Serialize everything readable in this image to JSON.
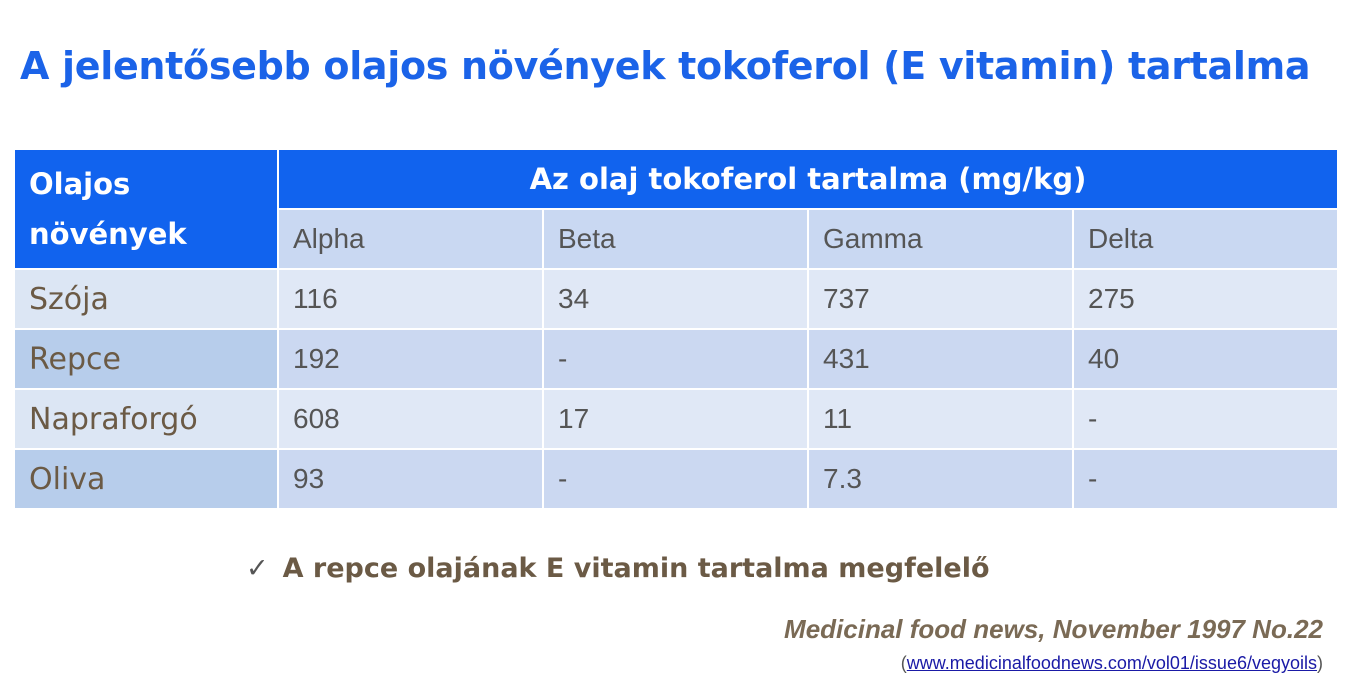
{
  "title": "A jelentősebb olajos növények tokoferol (E vitamin) tartalma",
  "table": {
    "corner_line1": "Olajos",
    "corner_line2": "növények",
    "group_header": "Az olaj tokoferol tartalma (mg/kg)",
    "columns": [
      "Alpha",
      "Beta",
      "Gamma",
      "Delta"
    ],
    "rows": [
      {
        "name": "Szója",
        "values": [
          "116",
          "34",
          "737",
          "275"
        ]
      },
      {
        "name": "Repce",
        "values": [
          "192",
          "-",
          "431",
          "40"
        ]
      },
      {
        "name": "Napraforgó",
        "values": [
          "608",
          "17",
          "11",
          "-"
        ]
      },
      {
        "name": "Oliva",
        "values": [
          "93",
          "-",
          "7.3",
          "-"
        ]
      }
    ]
  },
  "note": {
    "check": "✓",
    "text": "A repce olajának E vitamin tartalma megfelelő"
  },
  "source": {
    "citation": "Medicinal food news, November 1997 No.22",
    "open": "(",
    "url": "www.medicinalfoodnews.com/vol01/issue6/vegyoils",
    "close": ")"
  },
  "colors": {
    "title": "#1b63e8",
    "header": "#1163ee",
    "subheader": "#c9d8f2",
    "name_text": "#6b5a45"
  }
}
